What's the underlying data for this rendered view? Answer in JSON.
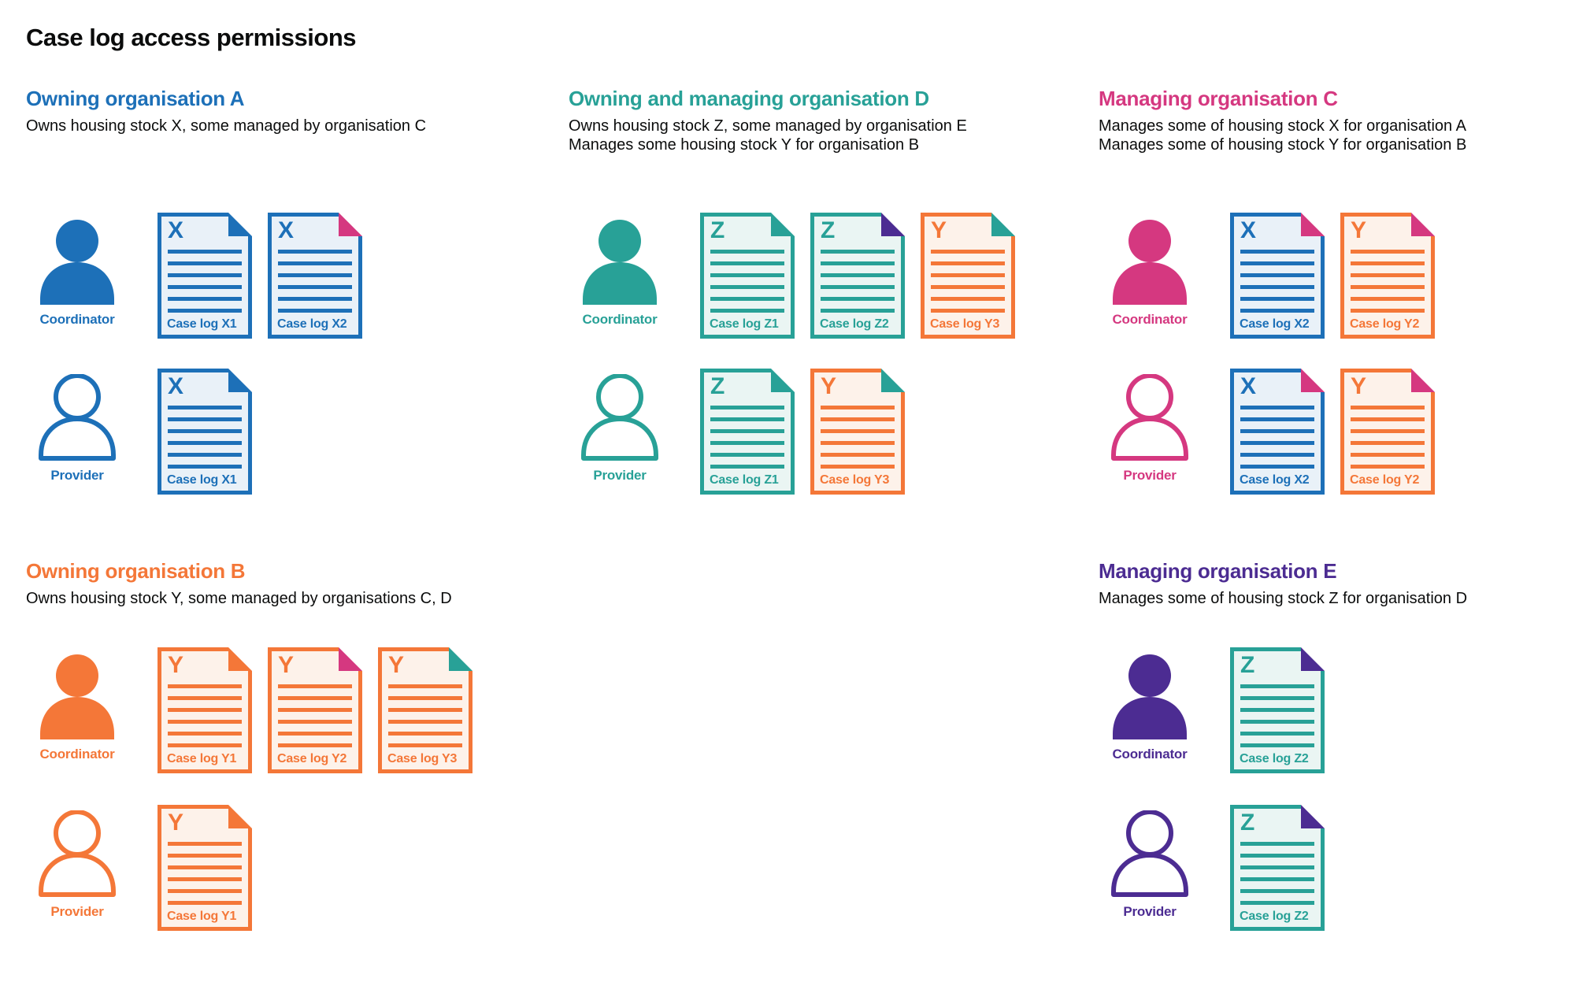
{
  "title": "Case log access permissions",
  "colors": {
    "blue": "#1d70b8",
    "teal": "#28a197",
    "pink": "#d53880",
    "orange": "#f47738",
    "purple": "#4c2c92",
    "text": "#0b0c0c",
    "blue_tint": "#e9f1f8",
    "teal_tint": "#eaf5f3",
    "orange_tint": "#fdf2ea"
  },
  "sections": [
    {
      "id": "owning-organisation-a",
      "title": "Owning organisation A",
      "color": "blue",
      "column": 1,
      "band": "top",
      "description": [
        "Owns housing stock X, some managed by organisation C"
      ],
      "rows": [
        {
          "role": "Coordinator",
          "icon": "person-filled",
          "docs": [
            {
              "letter": "X",
              "label": "Case log X1",
              "doc_color": "blue",
              "fold_color": "blue"
            },
            {
              "letter": "X",
              "label": "Case log X2",
              "doc_color": "blue",
              "fold_color": "pink"
            }
          ]
        },
        {
          "role": "Provider",
          "icon": "person-outline",
          "docs": [
            {
              "letter": "X",
              "label": "Case log X1",
              "doc_color": "blue",
              "fold_color": "blue"
            }
          ]
        }
      ]
    },
    {
      "id": "owning-and-managing-organisation-d",
      "title": "Owning and managing organisation D",
      "color": "teal",
      "column": 2,
      "band": "top",
      "description": [
        "Owns housing stock Z, some managed by organisation E",
        "Manages some housing stock Y for organisation B"
      ],
      "rows": [
        {
          "role": "Coordinator",
          "icon": "person-filled",
          "docs": [
            {
              "letter": "Z",
              "label": "Case log Z1",
              "doc_color": "teal",
              "fold_color": "teal"
            },
            {
              "letter": "Z",
              "label": "Case log Z2",
              "doc_color": "teal",
              "fold_color": "purple"
            },
            {
              "letter": "Y",
              "label": "Case log Y3",
              "doc_color": "orange",
              "fold_color": "teal"
            }
          ]
        },
        {
          "role": "Provider",
          "icon": "person-outline",
          "docs": [
            {
              "letter": "Z",
              "label": "Case log Z1",
              "doc_color": "teal",
              "fold_color": "teal"
            },
            {
              "letter": "Y",
              "label": "Case log Y3",
              "doc_color": "orange",
              "fold_color": "teal"
            }
          ]
        }
      ]
    },
    {
      "id": "managing-organisation-c",
      "title": "Managing organisation C",
      "color": "pink",
      "column": 3,
      "band": "top",
      "description": [
        "Manages some of housing stock X for organisation A",
        "Manages some of housing stock Y for organisation B"
      ],
      "rows": [
        {
          "role": "Coordinator",
          "icon": "person-filled",
          "docs": [
            {
              "letter": "X",
              "label": "Case log X2",
              "doc_color": "blue",
              "fold_color": "pink"
            },
            {
              "letter": "Y",
              "label": "Case log Y2",
              "doc_color": "orange",
              "fold_color": "pink"
            }
          ]
        },
        {
          "role": "Provider",
          "icon": "person-outline",
          "docs": [
            {
              "letter": "X",
              "label": "Case log X2",
              "doc_color": "blue",
              "fold_color": "pink"
            },
            {
              "letter": "Y",
              "label": "Case log Y2",
              "doc_color": "orange",
              "fold_color": "pink"
            }
          ]
        }
      ]
    },
    {
      "id": "owning-organisation-b",
      "title": "Owning organisation B",
      "color": "orange",
      "column": 1,
      "band": "bottom",
      "description": [
        "Owns housing stock Y, some managed by organisations C, D"
      ],
      "rows": [
        {
          "role": "Coordinator",
          "icon": "person-filled",
          "docs": [
            {
              "letter": "Y",
              "label": "Case log Y1",
              "doc_color": "orange",
              "fold_color": "orange"
            },
            {
              "letter": "Y",
              "label": "Case log Y2",
              "doc_color": "orange",
              "fold_color": "pink"
            },
            {
              "letter": "Y",
              "label": "Case log Y3",
              "doc_color": "orange",
              "fold_color": "teal"
            }
          ]
        },
        {
          "role": "Provider",
          "icon": "person-outline",
          "docs": [
            {
              "letter": "Y",
              "label": "Case log Y1",
              "doc_color": "orange",
              "fold_color": "orange"
            }
          ]
        }
      ]
    },
    {
      "id": "managing-organisation-e",
      "title": "Managing organisation E",
      "color": "purple",
      "column": 3,
      "band": "bottom",
      "description": [
        "Manages some of housing stock Z for organisation D"
      ],
      "rows": [
        {
          "role": "Coordinator",
          "icon": "person-filled",
          "docs": [
            {
              "letter": "Z",
              "label": "Case log Z2",
              "doc_color": "teal",
              "fold_color": "purple"
            }
          ]
        },
        {
          "role": "Provider",
          "icon": "person-outline",
          "docs": [
            {
              "letter": "Z",
              "label": "Case log Z2",
              "doc_color": "teal",
              "fold_color": "purple"
            }
          ]
        }
      ]
    }
  ]
}
